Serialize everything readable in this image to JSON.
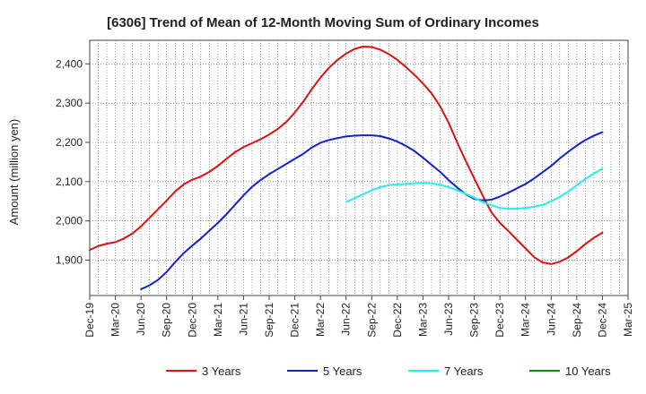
{
  "chart_data": {
    "type": "line",
    "title": "[6306]  Trend of Mean of 12-Month Moving Sum of Ordinary Incomes",
    "xlabel": "",
    "ylabel": "Amount (million yen)",
    "ylim": [
      1810,
      2460
    ],
    "yticks": [
      1900,
      2000,
      2100,
      2200,
      2300,
      2400
    ],
    "ytick_labels": [
      "1,900",
      "2,000",
      "2,100",
      "2,200",
      "2,300",
      "2,400"
    ],
    "x_tick_labels": [
      "Dec-19",
      "Mar-20",
      "Jun-20",
      "Sep-20",
      "Dec-20",
      "Mar-21",
      "Jun-21",
      "Sep-21",
      "Dec-21",
      "Mar-22",
      "Jun-22",
      "Sep-22",
      "Dec-22",
      "Mar-23",
      "Jun-23",
      "Sep-23",
      "Dec-23",
      "Mar-24",
      "Jun-24",
      "Sep-24",
      "Dec-24",
      "Mar-25"
    ],
    "x_unit": "month index from Dec-19",
    "grid": true,
    "legend_position": "bottom",
    "series": [
      {
        "name": "3 Years",
        "color": "#dd1111",
        "x": [
          0,
          1,
          2,
          3,
          4,
          5,
          6,
          7,
          8,
          9,
          10,
          11,
          12,
          13,
          14,
          15,
          16,
          17,
          18,
          19,
          20,
          21,
          22,
          23,
          24,
          25,
          26,
          27,
          28,
          29,
          30,
          31,
          32,
          33,
          34,
          35,
          36,
          37,
          38,
          39,
          40,
          41,
          42,
          43,
          44,
          45,
          46,
          47,
          48,
          49,
          50,
          51,
          52,
          53,
          54,
          55,
          56,
          57,
          58,
          59,
          60
        ],
        "values": [
          1926,
          1936,
          1942,
          1946,
          1955,
          1968,
          1986,
          2008,
          2030,
          2052,
          2075,
          2093,
          2105,
          2113,
          2125,
          2140,
          2158,
          2175,
          2188,
          2198,
          2208,
          2220,
          2234,
          2252,
          2276,
          2304,
          2336,
          2365,
          2390,
          2410,
          2426,
          2438,
          2444,
          2443,
          2436,
          2425,
          2410,
          2392,
          2372,
          2350,
          2325,
          2292,
          2250,
          2200,
          2153,
          2108,
          2064,
          2022,
          1995,
          1974,
          1952,
          1930,
          1908,
          1894,
          1890,
          1896,
          1907,
          1923,
          1941,
          1957,
          1970
        ]
      },
      {
        "name": "5 Years",
        "color": "#1122cc",
        "x": [
          6,
          7,
          8,
          9,
          10,
          11,
          12,
          13,
          14,
          15,
          16,
          17,
          18,
          19,
          20,
          21,
          22,
          23,
          24,
          25,
          26,
          27,
          28,
          29,
          30,
          31,
          32,
          33,
          34,
          35,
          36,
          37,
          38,
          39,
          40,
          41,
          42,
          43,
          44,
          45,
          46,
          47,
          48,
          49,
          50,
          51,
          52,
          53,
          54,
          55,
          56,
          57,
          58,
          59,
          60
        ],
        "values": [
          1826,
          1836,
          1850,
          1870,
          1895,
          1918,
          1937,
          1955,
          1975,
          1995,
          2017,
          2041,
          2065,
          2087,
          2104,
          2119,
          2132,
          2145,
          2158,
          2171,
          2187,
          2199,
          2206,
          2211,
          2215,
          2217,
          2218,
          2218,
          2216,
          2210,
          2202,
          2191,
          2178,
          2161,
          2143,
          2125,
          2104,
          2085,
          2068,
          2056,
          2052,
          2054,
          2062,
          2072,
          2083,
          2094,
          2108,
          2124,
          2140,
          2159,
          2176,
          2192,
          2206,
          2217,
          2226
        ]
      },
      {
        "name": "7 Years",
        "color": "#22eeee",
        "x": [
          30,
          31,
          32,
          33,
          34,
          35,
          36,
          37,
          38,
          39,
          40,
          41,
          42,
          43,
          44,
          45,
          46,
          47,
          48,
          49,
          50,
          51,
          52,
          53,
          54,
          55,
          56,
          57,
          58,
          59,
          60
        ],
        "values": [
          2048,
          2058,
          2068,
          2078,
          2086,
          2091,
          2093,
          2094,
          2096,
          2097,
          2096,
          2092,
          2086,
          2078,
          2069,
          2059,
          2048,
          2040,
          2033,
          2031,
          2031,
          2033,
          2036,
          2041,
          2050,
          2061,
          2075,
          2091,
          2107,
          2121,
          2133
        ]
      },
      {
        "name": "10 Years",
        "color": "#118811",
        "x": [],
        "values": []
      }
    ]
  }
}
